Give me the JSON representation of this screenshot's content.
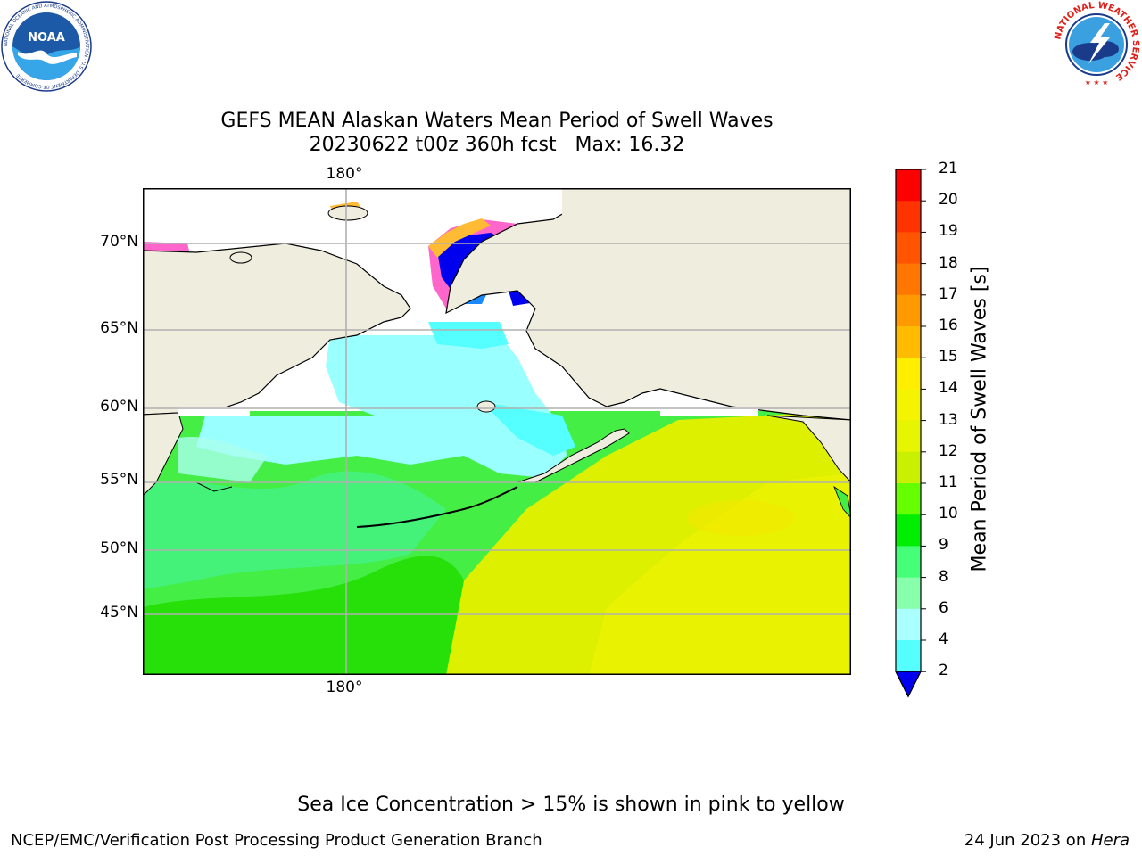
{
  "title": {
    "line1": "GEFS MEAN Alaskan Waters Mean Period of Swell Waves",
    "line2": "20230622 t00z 360h fcst   Max: 16.32"
  },
  "map": {
    "lon_label_top": "180°",
    "lon_label_bottom": "180°",
    "lat_labels": [
      "70°N",
      "65°N",
      "60°N",
      "55°N",
      "50°N",
      "45°N"
    ]
  },
  "colorbar": {
    "title": "Mean Period of Swell Waves [s]",
    "ticks": [
      "21",
      "20",
      "19",
      "18",
      "17",
      "16",
      "15",
      "14",
      "13",
      "12",
      "11",
      "10",
      "9",
      "8",
      "6",
      "4",
      "2"
    ],
    "colors": [
      "#ff0000",
      "#ff3300",
      "#ff5500",
      "#ff7700",
      "#ff9900",
      "#ffbb00",
      "#ffee00",
      "#f4f400",
      "#e6f500",
      "#c8f000",
      "#66ff00",
      "#00ee00",
      "#44ff77",
      "#88ffaa",
      "#aaffff",
      "#55ffff",
      "#00ffff",
      "#0088ff"
    ],
    "under_color": "#0000ee"
  },
  "palette": {
    "land": "#efedde",
    "ice_pink": "#ff66cc",
    "ice_orange": "#ffbb33",
    "ocean_green": "#33ee55",
    "ocean_yellow": "#ddf000",
    "ocean_cyan": "#99ffff",
    "grid": "#b0b0b0"
  },
  "caption": "Sea Ice Concentration > 15% is shown in pink to yellow",
  "footer": {
    "left": "NCEP/EMC/Verification Post Processing Product Generation Branch",
    "right_prefix": "24 Jun 2023 on ",
    "right_host": "Hera"
  },
  "logos": {
    "noaa_text": "NOAA",
    "noaa_ring": "NATIONAL OCEANIC AND ATMOSPHERIC ADMINISTRATION · U.S. DEPARTMENT OF COMMERCE",
    "nws_ring": "NATIONAL WEATHER SERVICE"
  }
}
